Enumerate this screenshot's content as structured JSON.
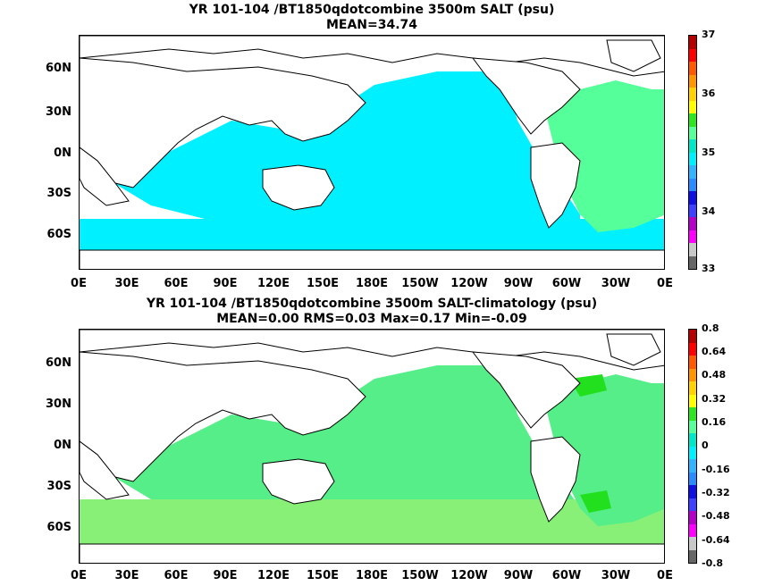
{
  "top": {
    "title_line1": "YR 101-104 /BT1850qdotcombine 3500m SALT (psu)",
    "title_line2": "MEAN=34.74",
    "lat_labels": [
      "60N",
      "30N",
      "0N",
      "30S",
      "60S"
    ],
    "lon_labels": [
      "0E",
      "30E",
      "60E",
      "90E",
      "120E",
      "150E",
      "180E",
      "150W",
      "120W",
      "90W",
      "60W",
      "30W",
      "0E"
    ],
    "colorbar": {
      "colors": [
        "#666666",
        "#c8c8c8",
        "#ff00ff",
        "#b400c8",
        "#4040ff",
        "#1010e0",
        "#2a8cff",
        "#33b4ff",
        "#00f0ff",
        "#00e8c8",
        "#55ff99",
        "#2ee61e",
        "#ffff00",
        "#ffd200",
        "#ff9600",
        "#ff5a00",
        "#ff0000",
        "#b40000"
      ],
      "labels": [
        "37",
        "36",
        "35",
        "34",
        "33"
      ]
    }
  },
  "bottom": {
    "title_line1": "YR 101-104 /BT1850qdotcombine 3500m SALT-climatology (psu)",
    "title_line2": "MEAN=0.00   RMS=0.03   Max=0.17   Min=-0.09",
    "lat_labels": [
      "60N",
      "30N",
      "0N",
      "30S",
      "60S"
    ],
    "lon_labels": [
      "0E",
      "30E",
      "60E",
      "90E",
      "120E",
      "150E",
      "180E",
      "150W",
      "120W",
      "90W",
      "60W",
      "30W",
      "0E"
    ],
    "colorbar": {
      "colors": [
        "#666666",
        "#c8c8c8",
        "#ff00ff",
        "#b400c8",
        "#4040ff",
        "#1010e0",
        "#2a8cff",
        "#33b4ff",
        "#00f0ff",
        "#00e8c8",
        "#55ff99",
        "#2ee61e",
        "#ffff00",
        "#ffd200",
        "#ff9600",
        "#ff5a00",
        "#ff0000",
        "#b40000"
      ],
      "labels": [
        "0.8",
        "0.64",
        "0.48",
        "0.32",
        "0.16",
        "0",
        "-0.16",
        "-0.32",
        "-0.48",
        "-0.64",
        "-0.8"
      ]
    }
  },
  "map_colors": {
    "land": "#ffffff",
    "coast": "#000000",
    "top_fill": "#00f0ff",
    "top_high": "#55ff99",
    "bottom_fill": "#55ee88",
    "bottom_light": "#88f077",
    "bottom_high": "#22e01e"
  }
}
